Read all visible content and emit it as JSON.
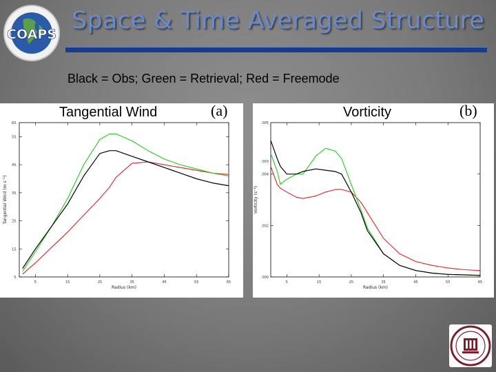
{
  "slide": {
    "title": "Space & Time Averaged Structure",
    "subtitle": "Black = Obs; Green = Retrieval; Red = Freemode",
    "logo_text": "COAPS",
    "colors": {
      "title": "#6b8acb",
      "rule": "#1c3a8c",
      "obs": "#000000",
      "retrieval": "#22cc22",
      "freemode": "#dd2222"
    }
  },
  "chart_data": [
    {
      "type": "line",
      "panel_title": "Tangential Wind",
      "panel_letter": "(a)",
      "xlabel": "Radius (km)",
      "ylabel": "Tangential Wind (m s⁻¹)",
      "xlim": [
        0,
        65
      ],
      "ylim": [
        5,
        60
      ],
      "xticks": [
        5,
        15,
        25,
        35,
        45,
        55,
        65
      ],
      "yticks": [
        5,
        15,
        25,
        35,
        45,
        55
      ],
      "ytick_labels": [
        "5.",
        "15.",
        "25.",
        "35.",
        "45.",
        "55."
      ],
      "extra_ytick_label": "60.",
      "x": [
        1,
        5,
        10,
        15,
        20,
        25,
        28,
        30,
        35,
        40,
        45,
        50,
        55,
        60,
        65
      ],
      "series": [
        {
          "color": "#000000",
          "values": [
            8,
            15,
            23,
            31,
            41,
            49,
            50,
            50,
            48,
            46,
            44,
            42,
            40,
            38.5,
            37.5
          ]
        },
        {
          "color": "#22cc22",
          "values": [
            7,
            14,
            23,
            33,
            45,
            54,
            56,
            56,
            53.5,
            50,
            47,
            45,
            43.5,
            42,
            41
          ]
        },
        {
          "color": "#dd2222",
          "values": [
            6,
            10,
            15.5,
            21,
            27,
            33,
            37,
            40.5,
            45.5,
            46,
            45,
            44,
            43,
            42,
            41.5
          ]
        }
      ]
    },
    {
      "type": "line",
      "panel_title": "Vorticity",
      "panel_letter": "(b)",
      "xlabel": "Radius (km)",
      "ylabel": "Vorticity (s⁻¹)",
      "xlim": [
        0,
        65
      ],
      "ylim": [
        0,
        0.006
      ],
      "xticks": [
        5,
        15,
        25,
        35,
        45,
        55,
        65
      ],
      "yticks": [
        0,
        0.002,
        0.004
      ],
      "ytick_labels": [
        ".000",
        ".002",
        ".004"
      ],
      "extra_ytick_labels": [
        ".005",
        ".003"
      ],
      "x": [
        0,
        2,
        3,
        5,
        8,
        10,
        14,
        17,
        20,
        22,
        25,
        28,
        30,
        35,
        40,
        45,
        50,
        55,
        60,
        65
      ],
      "series": [
        {
          "color": "#000000",
          "values": [
            0.0053,
            0.0046,
            0.0043,
            0.004,
            0.004,
            0.0041,
            0.0042,
            0.00415,
            0.0041,
            0.004,
            0.0033,
            0.0025,
            0.0018,
            0.0009,
            0.00045,
            0.00025,
            0.00015,
            0.0001,
            8e-05,
            6e-05
          ]
        },
        {
          "color": "#22cc22",
          "values": [
            0.0048,
            0.0041,
            0.0036,
            0.0038,
            0.004,
            0.004,
            0.0047,
            0.005,
            0.0049,
            0.0046,
            0.0036,
            0.0026,
            0.0019,
            0.0009,
            0.00045,
            0.00025,
            0.00015,
            0.0001,
            8e-05,
            7e-05
          ]
        },
        {
          "color": "#dd2222",
          "values": [
            0.0043,
            0.0036,
            0.00345,
            0.0033,
            0.0031,
            0.00305,
            0.00315,
            0.0033,
            0.0034,
            0.0034,
            0.0033,
            0.0029,
            0.0025,
            0.0015,
            0.0009,
            0.0006,
            0.00045,
            0.00035,
            0.00028,
            0.00025
          ]
        }
      ]
    }
  ]
}
